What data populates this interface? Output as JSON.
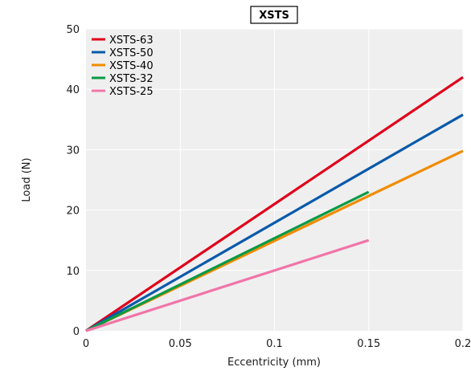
{
  "chart_data": {
    "type": "line",
    "title": "XSTS",
    "xlabel": "Eccentricity (mm)",
    "ylabel": "Load (N)",
    "xlim": [
      0,
      0.2
    ],
    "ylim": [
      0,
      50
    ],
    "x_ticks": [
      "0",
      "0.05",
      "0.1",
      "0.15",
      "0.2"
    ],
    "y_ticks": [
      "0",
      "10",
      "20",
      "30",
      "40",
      "50"
    ],
    "grid": true,
    "legend_position": "top-left",
    "series": [
      {
        "name": "XSTS-63",
        "color": "#e0001a",
        "x": [
          0,
          0.2
        ],
        "y": [
          0,
          42
        ]
      },
      {
        "name": "XSTS-50",
        "color": "#0a5aaa",
        "x": [
          0,
          0.2
        ],
        "y": [
          0,
          35.8
        ]
      },
      {
        "name": "XSTS-40",
        "color": "#f08c00",
        "x": [
          0,
          0.2
        ],
        "y": [
          0,
          29.8
        ]
      },
      {
        "name": "XSTS-32",
        "color": "#0a9a46",
        "x": [
          0,
          0.15
        ],
        "y": [
          0,
          23
        ]
      },
      {
        "name": "XSTS-25",
        "color": "#f075a8",
        "x": [
          0,
          0.15
        ],
        "y": [
          0,
          15
        ]
      }
    ]
  }
}
